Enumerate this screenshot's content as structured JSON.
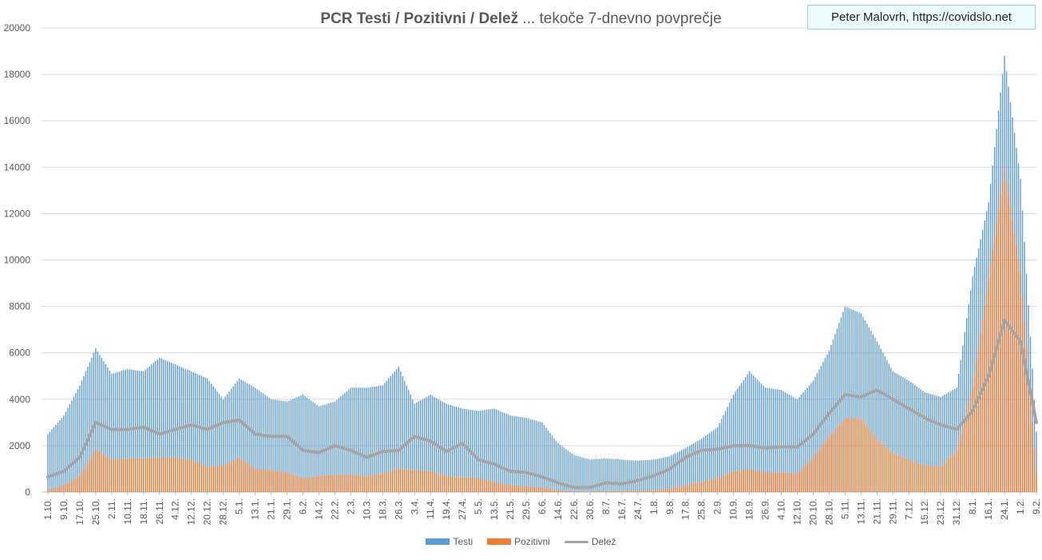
{
  "credit": "Peter Malovrh, https://covidslo.net",
  "title": {
    "bold": "PCR Testi / Pozitivni / Delež",
    "rest": " ... tekoče 7-dnevno povprečje"
  },
  "legend": {
    "testi": "Testi",
    "pozitivni": "Pozitivni",
    "delez": "Delež"
  },
  "colors": {
    "testi": "#5b9bd5",
    "pozitivni": "#ed7d31",
    "delez": "#a5a5a5",
    "grid": "#d9d9d9"
  },
  "chart_data": {
    "type": "bar",
    "title": "PCR Testi / Pozitivni / Delež ... tekoče 7-dnevno povprečje",
    "xlabel": "",
    "ylabel": "",
    "ylim": [
      0,
      20000
    ],
    "yticks": [
      "0",
      "2000",
      "4000",
      "6000",
      "8000",
      "10000",
      "12000",
      "14000",
      "16000",
      "18000",
      "20000"
    ],
    "categories": [
      "1.10.",
      "9.10.",
      "17.10.",
      "25.10.",
      "2.11.",
      "10.11.",
      "18.11.",
      "26.11.",
      "4.12.",
      "12.12.",
      "20.12.",
      "28.12.",
      "5.1.",
      "13.1.",
      "21.1.",
      "29.1.",
      "6.2.",
      "14.2.",
      "22.2.",
      "2.3.",
      "10.3.",
      "18.3.",
      "26.3.",
      "3.4.",
      "11.4.",
      "19.4.",
      "27.4.",
      "5.5.",
      "13.5.",
      "21.5.",
      "29.5.",
      "6.6.",
      "14.6.",
      "22.6.",
      "30.6.",
      "8.7.",
      "16.7.",
      "24.7.",
      "1.8.",
      "9.8.",
      "17.8.",
      "25.8.",
      "2.9.",
      "10.9.",
      "18.9.",
      "26.9.",
      "4.10.",
      "12.10.",
      "20.10.",
      "28.10.",
      "5.11.",
      "13.11.",
      "21.11.",
      "29.11.",
      "7.12.",
      "15.12.",
      "23.12.",
      "31.12.",
      "8.1.",
      "16.1.",
      "24.1.",
      "1.2.",
      "9.2."
    ],
    "series": [
      {
        "name": "Testi",
        "type": "bar",
        "values": [
          2500,
          3300,
          4600,
          6200,
          5100,
          5300,
          5200,
          5800,
          5500,
          5200,
          4900,
          4000,
          4900,
          4500,
          4000,
          3900,
          4200,
          3700,
          3900,
          4500,
          4500,
          4600,
          5400,
          3800,
          4200,
          3800,
          3600,
          3500,
          3600,
          3300,
          3200,
          3000,
          2100,
          1600,
          1400,
          1450,
          1400,
          1350,
          1400,
          1550,
          1900,
          2300,
          2800,
          4200,
          5200,
          4500,
          4400,
          4000,
          4800,
          6100,
          8000,
          7700,
          6500,
          5200,
          4800,
          4300,
          4100,
          4500,
          9300,
          12500,
          18800,
          13500,
          2600
        ]
      },
      {
        "name": "Pozitivni",
        "type": "bar",
        "values": [
          100,
          300,
          700,
          1850,
          1400,
          1450,
          1450,
          1500,
          1500,
          1400,
          1100,
          1150,
          1500,
          1000,
          950,
          850,
          600,
          700,
          750,
          750,
          700,
          800,
          1000,
          950,
          900,
          700,
          650,
          600,
          450,
          300,
          250,
          200,
          80,
          30,
          25,
          40,
          50,
          60,
          80,
          150,
          300,
          450,
          600,
          900,
          1000,
          850,
          850,
          800,
          1500,
          2400,
          3200,
          3200,
          2300,
          1700,
          1400,
          1150,
          1100,
          1800,
          4500,
          9200,
          14000,
          9500,
          800
        ]
      },
      {
        "name": "Delež",
        "type": "line",
        "values": [
          650,
          900,
          1500,
          3000,
          2700,
          2700,
          2800,
          2500,
          2700,
          2900,
          2700,
          3000,
          3100,
          2500,
          2400,
          2400,
          1800,
          1700,
          2000,
          1800,
          1500,
          1750,
          1800,
          2400,
          2200,
          1750,
          2100,
          1400,
          1200,
          900,
          850,
          650,
          400,
          200,
          200,
          400,
          350,
          500,
          700,
          1000,
          1500,
          1800,
          1850,
          2000,
          2000,
          1900,
          1950,
          1950,
          2500,
          3400,
          4200,
          4100,
          4400,
          4000,
          3600,
          3200,
          2900,
          2700,
          3500,
          5000,
          7400,
          6500,
          3000
        ]
      }
    ]
  }
}
